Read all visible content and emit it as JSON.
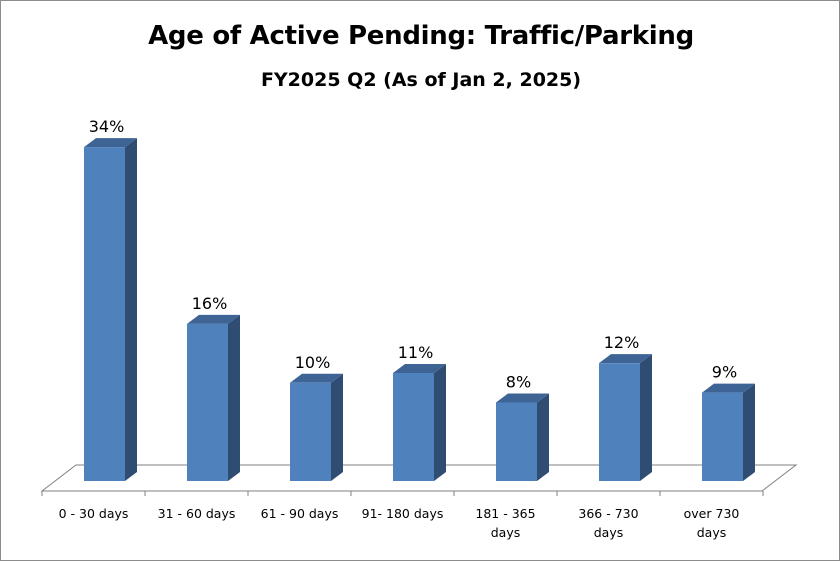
{
  "chart_data": {
    "type": "bar",
    "title": "Age of Active Pending: Traffic/Parking",
    "subtitle": "FY2025 Q2 (As of Jan 2, 2025)",
    "categories": [
      [
        "0 - 30 days"
      ],
      [
        "31 - 60 days"
      ],
      [
        "61 - 90 days"
      ],
      [
        "91- 180 days"
      ],
      [
        "181 - 365",
        "days"
      ],
      [
        "366 - 730",
        "days"
      ],
      [
        "over 730",
        "days"
      ]
    ],
    "values": [
      34,
      16,
      10,
      11,
      8,
      12,
      9
    ],
    "labels": [
      "34%",
      "16%",
      "10%",
      "11%",
      "8%",
      "12%",
      "9%"
    ],
    "unit": "%",
    "ylim": [
      0,
      35
    ],
    "grid": false,
    "legend": "none",
    "colors": {
      "front": "#4f81bd",
      "side": "#2f4d73",
      "top": "#3d6495",
      "floor": "#808080",
      "text": "#000000"
    }
  }
}
